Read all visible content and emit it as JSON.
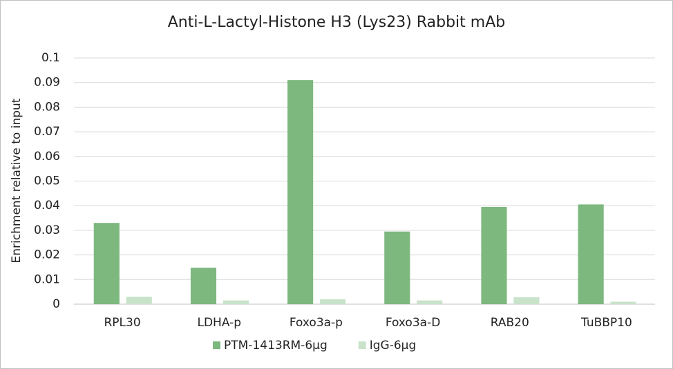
{
  "chart_data": {
    "type": "bar",
    "title": "Anti-L-Lactyl-Histone H3 (Lys23) Rabbit mAb",
    "y_label": "Enrichment relative to input",
    "categories": [
      "RPL30",
      "LDHA-p",
      "Foxo3a-p",
      "Foxo3a-D",
      "RAB20",
      "TuBBP10"
    ],
    "series": [
      {
        "name": "PTM-1413RM-6μg",
        "color": "#7db87f",
        "values": [
          0.033,
          0.0148,
          0.091,
          0.0295,
          0.0395,
          0.0405
        ]
      },
      {
        "name": "IgG-6μg",
        "color": "#c9e3cb",
        "values": [
          0.003,
          0.0015,
          0.002,
          0.0015,
          0.0028,
          0.001
        ]
      }
    ],
    "ylim": [
      0,
      0.1
    ],
    "yticks": [
      0,
      0.01,
      0.02,
      0.03,
      0.04,
      0.05,
      0.06,
      0.07,
      0.08,
      0.09,
      0.1
    ],
    "grid": true,
    "legend": "bottom"
  }
}
